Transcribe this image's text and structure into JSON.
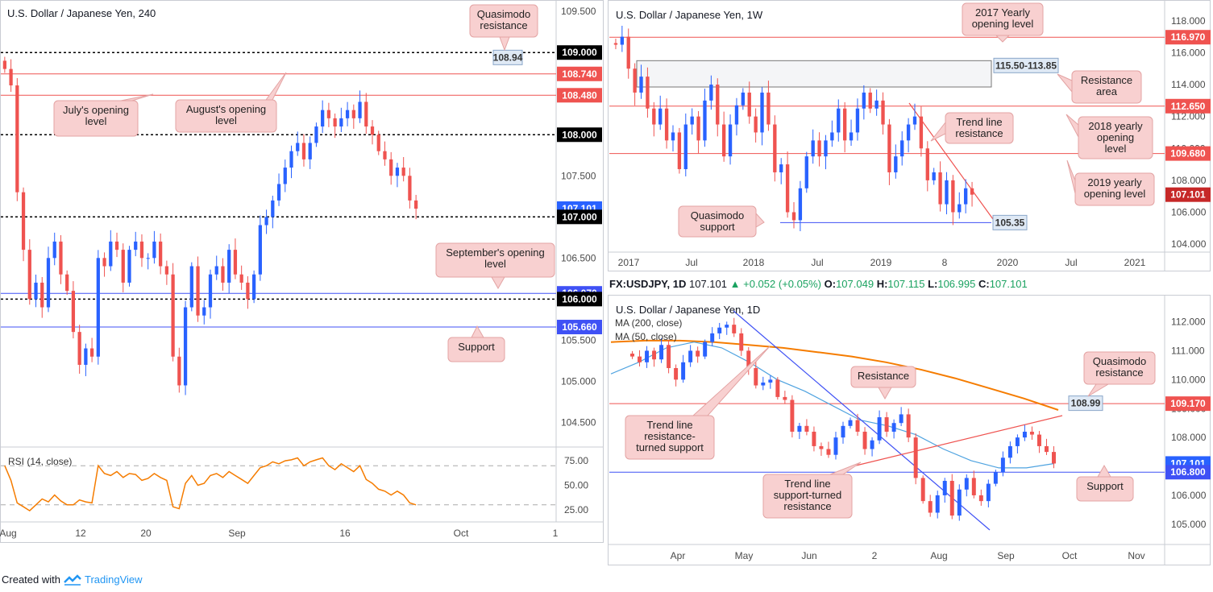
{
  "footer": {
    "created_with": "Created with",
    "brand": "TradingView"
  },
  "infobar": {
    "symbol": "FX:USDJPY, 1D",
    "last": "107.101",
    "change": "+0.052 (+0.05%)",
    "o_label": "O:",
    "o": "107.049",
    "h_label": "H:",
    "h": "107.115",
    "l_label": "L:",
    "l": "106.995",
    "c_label": "C:",
    "c": "107.101"
  },
  "colors": {
    "red_line": "#ef5350",
    "blue_line": "#3f51f5",
    "up": "#2962ff",
    "down": "#ef5350",
    "note_bg": "#f8d0d0",
    "rsi": "#f57c00",
    "ma200": "#f57c00",
    "ma50": "#4fa3e0",
    "black_tag": "#000000"
  },
  "chart_data": [
    {
      "type": "candlestick",
      "title": "U.S. Dollar / Japanese Yen, 240",
      "x_tick_labels": [
        "Aug",
        "12",
        "20",
        "Sep",
        "16",
        "Oct",
        "1"
      ],
      "y_tick_labels": [
        "109.500",
        "109.000",
        "108.500",
        "108.000",
        "107.500",
        "107.000",
        "106.500",
        "106.000",
        "105.500",
        "105.000",
        "104.500"
      ],
      "ylim": [
        104.2,
        109.6
      ],
      "close_series": [
        108.8,
        108.6,
        107.3,
        106.6,
        106.0,
        106.2,
        105.9,
        106.5,
        106.7,
        106.3,
        106.1,
        105.6,
        105.2,
        105.4,
        105.3,
        106.5,
        106.4,
        106.7,
        106.6,
        106.2,
        106.6,
        106.7,
        106.5,
        106.5,
        106.7,
        106.4,
        106.3,
        105.3,
        104.95,
        105.9,
        106.4,
        105.8,
        105.9,
        106.3,
        106.4,
        106.2,
        106.6,
        106.3,
        106.2,
        106.0,
        106.3,
        106.9,
        107.0,
        107.2,
        107.4,
        107.6,
        107.8,
        107.9,
        107.7,
        107.9,
        108.1,
        108.3,
        108.2,
        108.1,
        108.2,
        108.3,
        108.2,
        108.4,
        108.1,
        108.0,
        107.8,
        107.7,
        107.5,
        107.6,
        107.5,
        107.2,
        107.1
      ],
      "levels": [
        {
          "value": 109.0,
          "style": "dotted",
          "tag": "109.000"
        },
        {
          "value": 108.94,
          "style": "none",
          "tag": "108.94"
        },
        {
          "value": 108.74,
          "style": "red",
          "tag": "108.740"
        },
        {
          "value": 108.48,
          "style": "red",
          "tag": "108.480"
        },
        {
          "value": 108.0,
          "style": "dotted",
          "tag": "108.000"
        },
        {
          "value": 107.101,
          "style": "none",
          "tag": "107.101"
        },
        {
          "value": 107.0,
          "style": "dotted",
          "tag": "107.000"
        },
        {
          "value": 106.07,
          "style": "blue",
          "tag": "106.070"
        },
        {
          "value": 106.0,
          "style": "dotted",
          "tag": "106.000"
        },
        {
          "value": 105.66,
          "style": "blue",
          "tag": "105.660"
        }
      ],
      "annotations": [
        "Quasimodo resistance",
        "July's opening level",
        "August's opening level",
        "September's opening level",
        "Support"
      ],
      "rsi": {
        "label": "RSI (14, close)",
        "y_tick_labels": [
          "75.00",
          "50.00",
          "25.00"
        ],
        "levels": [
          70,
          30
        ],
        "values": [
          70,
          55,
          32,
          28,
          24,
          30,
          36,
          33,
          40,
          34,
          30,
          30,
          35,
          33,
          32,
          70,
          62,
          60,
          64,
          58,
          62,
          61,
          55,
          57,
          62,
          58,
          55,
          28,
          26,
          52,
          60,
          50,
          52,
          60,
          62,
          58,
          64,
          60,
          56,
          52,
          60,
          68,
          70,
          74,
          72,
          75,
          76,
          78,
          70,
          74,
          76,
          78,
          70,
          66,
          72,
          68,
          64,
          70,
          56,
          52,
          46,
          44,
          40,
          44,
          40,
          32,
          30
        ]
      }
    },
    {
      "type": "candlestick",
      "title": "U.S. Dollar / Japanese Yen, 1W",
      "x_tick_labels": [
        "2017",
        "Jul",
        "2018",
        "Jul",
        "2019",
        "8",
        "2020",
        "Jul",
        "2021"
      ],
      "y_tick_labels": [
        "118.000",
        "116.000",
        "114.000",
        "112.000",
        "110.000",
        "108.000",
        "106.000",
        "104.000"
      ],
      "ylim": [
        103.5,
        119.0
      ],
      "close_series": [
        116.5,
        117.0,
        115.0,
        113.5,
        114.5,
        112.5,
        111.5,
        112.5,
        110.5,
        111.0,
        108.7,
        111.5,
        112.0,
        110.5,
        113.0,
        114.0,
        111.5,
        109.5,
        111.5,
        112.7,
        113.5,
        112.0,
        111.0,
        113.5,
        111.5,
        108.5,
        109.0,
        106.0,
        105.5,
        107.5,
        109.5,
        110.5,
        109.5,
        110.5,
        111.0,
        112.5,
        110.5,
        111.0,
        112.5,
        113.5,
        112.5,
        113.0,
        111.5,
        108.5,
        109.5,
        110.5,
        111.5,
        112.0,
        110.0,
        108.0,
        108.5,
        106.5,
        108.0,
        106.0,
        106.5,
        107.5,
        107.1
      ],
      "levels": [
        {
          "value": 116.97,
          "style": "red",
          "tag": "116.970"
        },
        {
          "value": 112.65,
          "style": "red",
          "tag": "112.650"
        },
        {
          "value": 109.68,
          "style": "red",
          "tag": "109.680"
        },
        {
          "value": 107.101,
          "style": "none",
          "tag": "107.101"
        },
        {
          "value": 105.35,
          "style": "blue",
          "tag": "105.35"
        }
      ],
      "zone": {
        "low": 113.85,
        "high": 115.5,
        "label": "115.50-113.85"
      },
      "annotations": [
        "2017 Yearly opening level",
        "Resistance area",
        "Trend line resistance",
        "2018 yearly opening level",
        "2019 yearly opening level",
        "Quasimodo support"
      ]
    },
    {
      "type": "candlestick",
      "title": "U.S. Dollar / Japanese Yen, 1D",
      "x_tick_labels": [
        "Apr",
        "May",
        "Jun",
        "2",
        "Aug",
        "Sep",
        "Oct",
        "Nov"
      ],
      "y_tick_labels": [
        "112.000",
        "111.000",
        "110.000",
        "109.000",
        "108.000",
        "107.000",
        "106.000",
        "105.000"
      ],
      "ylim": [
        104.3,
        112.6
      ],
      "ma_labels": [
        "MA (200, close)",
        "MA (50, close)"
      ],
      "close_series": [
        110.8,
        110.6,
        111.0,
        110.7,
        111.2,
        110.4,
        110.0,
        110.6,
        111.0,
        110.8,
        111.3,
        111.6,
        111.8,
        111.9,
        111.6,
        111.0,
        110.4,
        109.8,
        109.9,
        110.0,
        109.4,
        109.3,
        108.2,
        108.4,
        108.2,
        107.7,
        107.6,
        107.4,
        108.0,
        108.4,
        108.6,
        108.2,
        107.6,
        107.9,
        108.7,
        108.2,
        108.5,
        108.8,
        108.0,
        106.6,
        105.8,
        105.4,
        106.0,
        106.5,
        105.3,
        106.2,
        106.6,
        106.0,
        105.8,
        106.4,
        106.8,
        107.3,
        107.7,
        108.0,
        108.2,
        108.1,
        107.7,
        107.5,
        107.1
      ],
      "ma200": [
        111.3,
        111.35,
        111.35,
        111.3,
        111.2,
        111.1,
        110.95,
        110.8,
        110.6,
        110.35,
        110.05,
        109.7,
        109.35,
        108.95
      ],
      "ma50": [
        110.2,
        110.6,
        111.1,
        111.3,
        111.1,
        110.6,
        110.0,
        109.6,
        109.1,
        108.6,
        108.4,
        108.1,
        107.6,
        107.2,
        106.95,
        106.95,
        107.1
      ],
      "levels": [
        {
          "value": 109.17,
          "style": "red",
          "tag": "109.170"
        },
        {
          "value": 108.99,
          "style": "none",
          "tag": "108.99"
        },
        {
          "value": 107.101,
          "style": "none",
          "tag": "107.101"
        },
        {
          "value": 106.8,
          "style": "blue",
          "tag": "106.800"
        }
      ],
      "annotations": [
        "Resistance",
        "Quasimodo resistance",
        "Trend line resistance-turned support",
        "Trend line support-turned resistance",
        "Support"
      ]
    }
  ]
}
